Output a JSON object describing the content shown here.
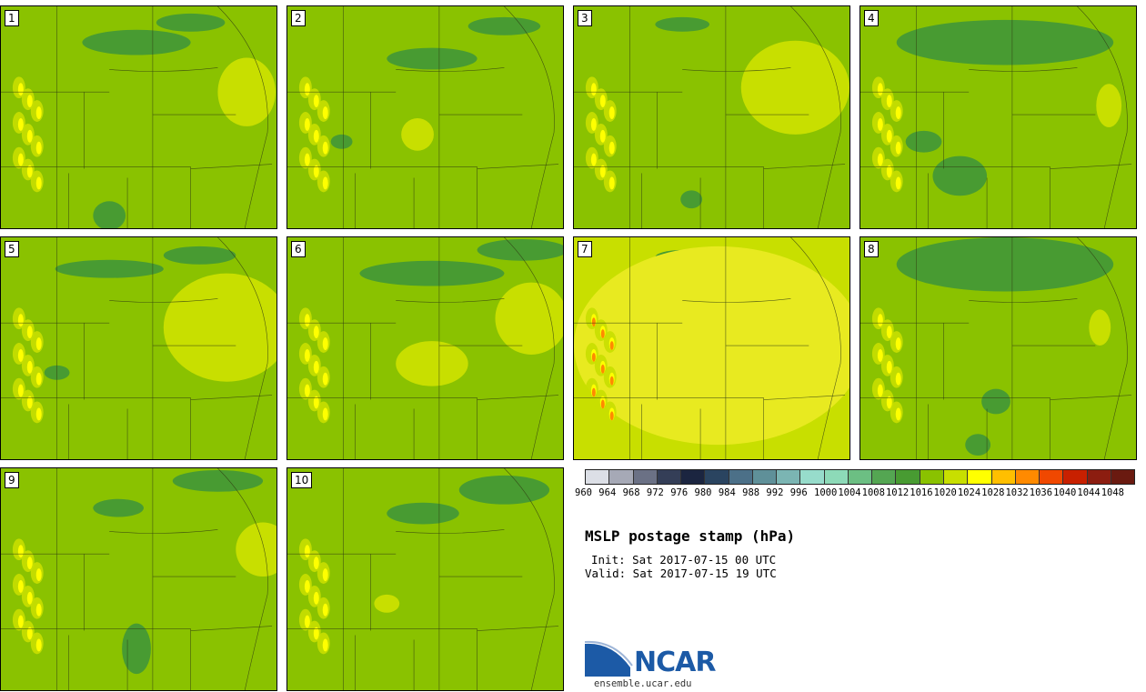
{
  "panels": [
    {
      "label": "1"
    },
    {
      "label": "2"
    },
    {
      "label": "3"
    },
    {
      "label": "4"
    },
    {
      "label": "5"
    },
    {
      "label": "6"
    },
    {
      "label": "7"
    },
    {
      "label": "8"
    },
    {
      "label": "9"
    },
    {
      "label": "10"
    }
  ],
  "colorbar": {
    "ticks": [
      "960",
      "964",
      "968",
      "972",
      "976",
      "980",
      "984",
      "988",
      "992",
      "996",
      "1000",
      "1004",
      "1008",
      "1012",
      "1016",
      "1020",
      "1024",
      "1028",
      "1032",
      "1036",
      "1040",
      "1044",
      "1048"
    ],
    "colors": [
      "#dcdfe6",
      "#a6a9b6",
      "#6b7185",
      "#343e57",
      "#1b2540",
      "#2a4460",
      "#4c7088",
      "#5f9099",
      "#7bb5b3",
      "#97dccb",
      "#8ddab8",
      "#6cbf83",
      "#54a652",
      "#489b32",
      "#8ac200",
      "#c8df00",
      "#ffff00",
      "#ffbf00",
      "#ff8a00",
      "#f04800",
      "#c82000",
      "#8c1d10",
      "#6a1a10"
    ]
  },
  "title": "MSLP postage stamp (hPa)",
  "init": "Init: Sat 2017-07-15 00 UTC",
  "valid": "Valid: Sat 2017-07-15 19 UTC",
  "logo": {
    "text": "NCAR",
    "color": "#1c5aa6",
    "site": "ensemble.ucar.edu"
  },
  "map_colors": {
    "base": "#8ac200",
    "low": "#489b32",
    "high": "#c8df00",
    "peak": "#ffff00",
    "hot": "#ff8a00",
    "border": "#2f3b12"
  }
}
